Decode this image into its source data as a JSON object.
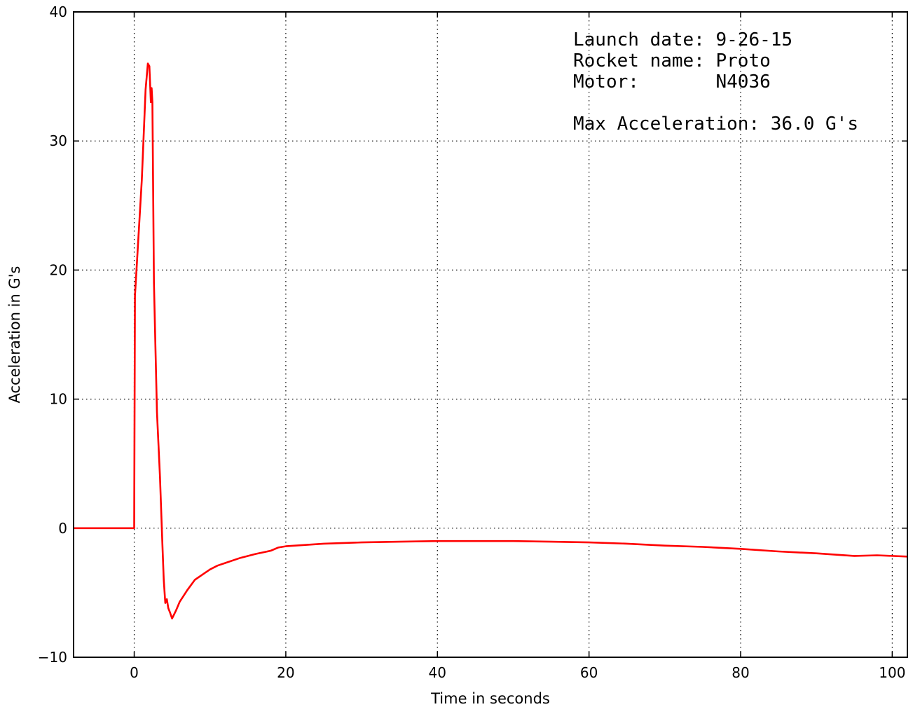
{
  "chart_data": {
    "type": "line",
    "title": "",
    "xlabel": "Time in seconds",
    "ylabel": "Acceleration in G's",
    "xlim": [
      -8,
      102
    ],
    "ylim": [
      -10,
      40
    ],
    "xticks": [
      0,
      20,
      40,
      60,
      80,
      100
    ],
    "yticks": [
      -10,
      0,
      10,
      20,
      30,
      40
    ],
    "xtick_labels": [
      "0",
      "20",
      "40",
      "60",
      "80",
      "100"
    ],
    "ytick_labels": [
      "−10",
      "0",
      "10",
      "20",
      "30",
      "40"
    ],
    "grid": true,
    "line_color": "#ff0000",
    "annotations": [
      "Launch date: 9-26-15",
      "Rocket name: Proto",
      "Motor:       N4036",
      "",
      "Max Acceleration: 36.0 G's"
    ],
    "series": [
      {
        "x": [
          -8,
          -5,
          -2,
          -0.2,
          0,
          0.1,
          0.3,
          1.0,
          1.5,
          1.8,
          2.0,
          2.2,
          2.3,
          2.4,
          2.6,
          3.0,
          3.4,
          3.7,
          3.9,
          4.1,
          4.3,
          4.5,
          4.7,
          5.0,
          5.5,
          6,
          7,
          8,
          9,
          10,
          11,
          12,
          14,
          16,
          18,
          19,
          20,
          25,
          30,
          35,
          40,
          45,
          50,
          55,
          60,
          65,
          70,
          75,
          80,
          85,
          90,
          95,
          98,
          102
        ],
        "y": [
          0,
          0,
          0,
          0,
          0,
          18,
          20,
          27,
          34,
          36.0,
          35.8,
          33,
          34.1,
          33,
          19,
          9,
          4,
          -1,
          -4,
          -5.8,
          -5.5,
          -6.2,
          -6.5,
          -7.0,
          -6.4,
          -5.7,
          -4.8,
          -4.0,
          -3.6,
          -3.2,
          -2.9,
          -2.7,
          -2.3,
          -2.0,
          -1.75,
          -1.5,
          -1.4,
          -1.2,
          -1.1,
          -1.05,
          -1.0,
          -1.0,
          -1.0,
          -1.05,
          -1.1,
          -1.2,
          -1.35,
          -1.45,
          -1.6,
          -1.8,
          -1.95,
          -2.15,
          -2.1,
          -2.2
        ]
      }
    ]
  }
}
